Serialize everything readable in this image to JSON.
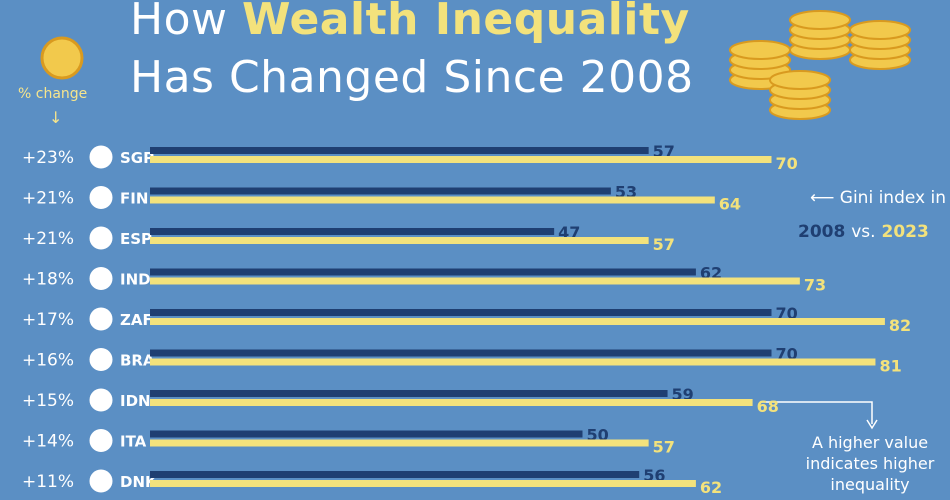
{
  "title": {
    "prefix": "How ",
    "highlight": "Wealth Inequality",
    "line2": "Has Changed Since 2008"
  },
  "pct_header": "% change",
  "legend": {
    "line1": "Gini index in",
    "year_a": "2008",
    "vs": "vs.",
    "year_b": "2023"
  },
  "note": {
    "line1": "A higher value",
    "line2": "indicates higher",
    "line3": "inequality"
  },
  "colors": {
    "bg": "#5b8fc4",
    "bar_2008": "#1f3f72",
    "bar_2023": "#f3e27c"
  },
  "chart_data": {
    "type": "bar",
    "categories": [
      "SGP",
      "FIN",
      "ESP",
      "IND",
      "ZAF",
      "BRA",
      "IDN",
      "ITA",
      "DNK"
    ],
    "pct_change": [
      "+23%",
      "+21%",
      "+21%",
      "+18%",
      "+17%",
      "+16%",
      "+15%",
      "+14%",
      "+11%"
    ],
    "series": [
      {
        "name": "2008",
        "values": [
          57,
          53,
          47,
          62,
          70,
          70,
          59,
          50,
          56
        ]
      },
      {
        "name": "2023",
        "values": [
          70,
          64,
          57,
          73,
          82,
          81,
          68,
          57,
          62
        ]
      }
    ]
  }
}
